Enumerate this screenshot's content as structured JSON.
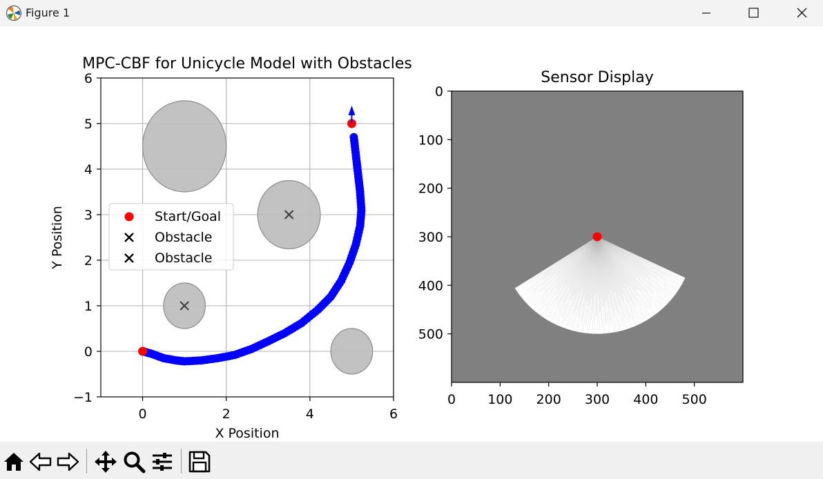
{
  "window": {
    "title": "Figure 1"
  },
  "toolbar": {
    "icons": [
      "home-icon",
      "back-icon",
      "forward-icon",
      "pan-icon",
      "zoom-icon",
      "configure-subplots-icon",
      "save-icon"
    ]
  },
  "colors": {
    "trajectory": "#0000ff",
    "start_goal": "#ff0000",
    "obstacle_fill": "#bfbfbf",
    "sensor_bg": "#808080",
    "sensor_rays": "#ffffff"
  },
  "chart_data": [
    {
      "type": "scatter",
      "title": "MPC-CBF for Unicycle Model with Obstacles",
      "xlabel": "X Position",
      "ylabel": "Y Position",
      "xlim": [
        -1,
        6
      ],
      "ylim": [
        -1,
        6
      ],
      "xticks": [
        0,
        2,
        4,
        6
      ],
      "yticks": [
        -1,
        0,
        1,
        2,
        3,
        4,
        5,
        6
      ],
      "xtick_labels": [
        "0",
        "2",
        "4",
        "6"
      ],
      "ytick_labels": [
        "−1",
        "0",
        "1",
        "2",
        "3",
        "4",
        "5",
        "6"
      ],
      "grid": true,
      "legend_position": "center-left",
      "legend": [
        {
          "label": "Start/Goal",
          "marker": "circle",
          "color": "#ff0000"
        },
        {
          "label": "Obstacle",
          "marker": "x",
          "color": "#000000"
        },
        {
          "label": "Obstacle",
          "marker": "x",
          "color": "#000000"
        }
      ],
      "start": [
        0,
        0
      ],
      "goal": [
        5,
        5
      ],
      "obstacles": [
        {
          "cx": 1.0,
          "cy": 4.5,
          "rx": 1.0,
          "ry": 1.0
        },
        {
          "cx": 3.5,
          "cy": 3.0,
          "rx": 0.75,
          "ry": 0.75,
          "marker": true
        },
        {
          "cx": 1.0,
          "cy": 1.0,
          "rx": 0.5,
          "ry": 0.5,
          "marker": true
        },
        {
          "cx": 5.0,
          "cy": 0.0,
          "rx": 0.5,
          "ry": 0.5
        }
      ],
      "trajectory": {
        "name": "",
        "points": [
          [
            0,
            0
          ],
          [
            0.2,
            -0.05
          ],
          [
            0.5,
            -0.15
          ],
          [
            0.8,
            -0.2
          ],
          [
            1.0,
            -0.22
          ],
          [
            1.4,
            -0.2
          ],
          [
            1.8,
            -0.15
          ],
          [
            2.2,
            -0.08
          ],
          [
            2.6,
            0.05
          ],
          [
            3.0,
            0.22
          ],
          [
            3.4,
            0.4
          ],
          [
            3.8,
            0.62
          ],
          [
            4.2,
            0.92
          ],
          [
            4.5,
            1.2
          ],
          [
            4.75,
            1.55
          ],
          [
            4.95,
            1.95
          ],
          [
            5.1,
            2.35
          ],
          [
            5.2,
            2.75
          ],
          [
            5.23,
            3.1
          ],
          [
            5.2,
            3.5
          ],
          [
            5.15,
            3.9
          ],
          [
            5.1,
            4.3
          ],
          [
            5.05,
            4.7
          ]
        ]
      },
      "heading_arrow": {
        "x": 5.0,
        "y": 5.0,
        "angle_deg": 90
      }
    },
    {
      "type": "heatmap",
      "title": "Sensor Display",
      "xlim": [
        0,
        600
      ],
      "ylim": [
        600,
        0
      ],
      "xticks": [
        0,
        100,
        200,
        300,
        400,
        500
      ],
      "yticks": [
        0,
        100,
        200,
        300,
        400,
        500
      ],
      "xtick_labels": [
        "0",
        "100",
        "200",
        "300",
        "400",
        "500"
      ],
      "ytick_labels": [
        "0",
        "100",
        "200",
        "300",
        "400",
        "500"
      ],
      "sensor_origin": [
        300,
        300
      ],
      "fov": {
        "radius": 200,
        "start_deg": 25,
        "end_deg": 148
      }
    }
  ]
}
